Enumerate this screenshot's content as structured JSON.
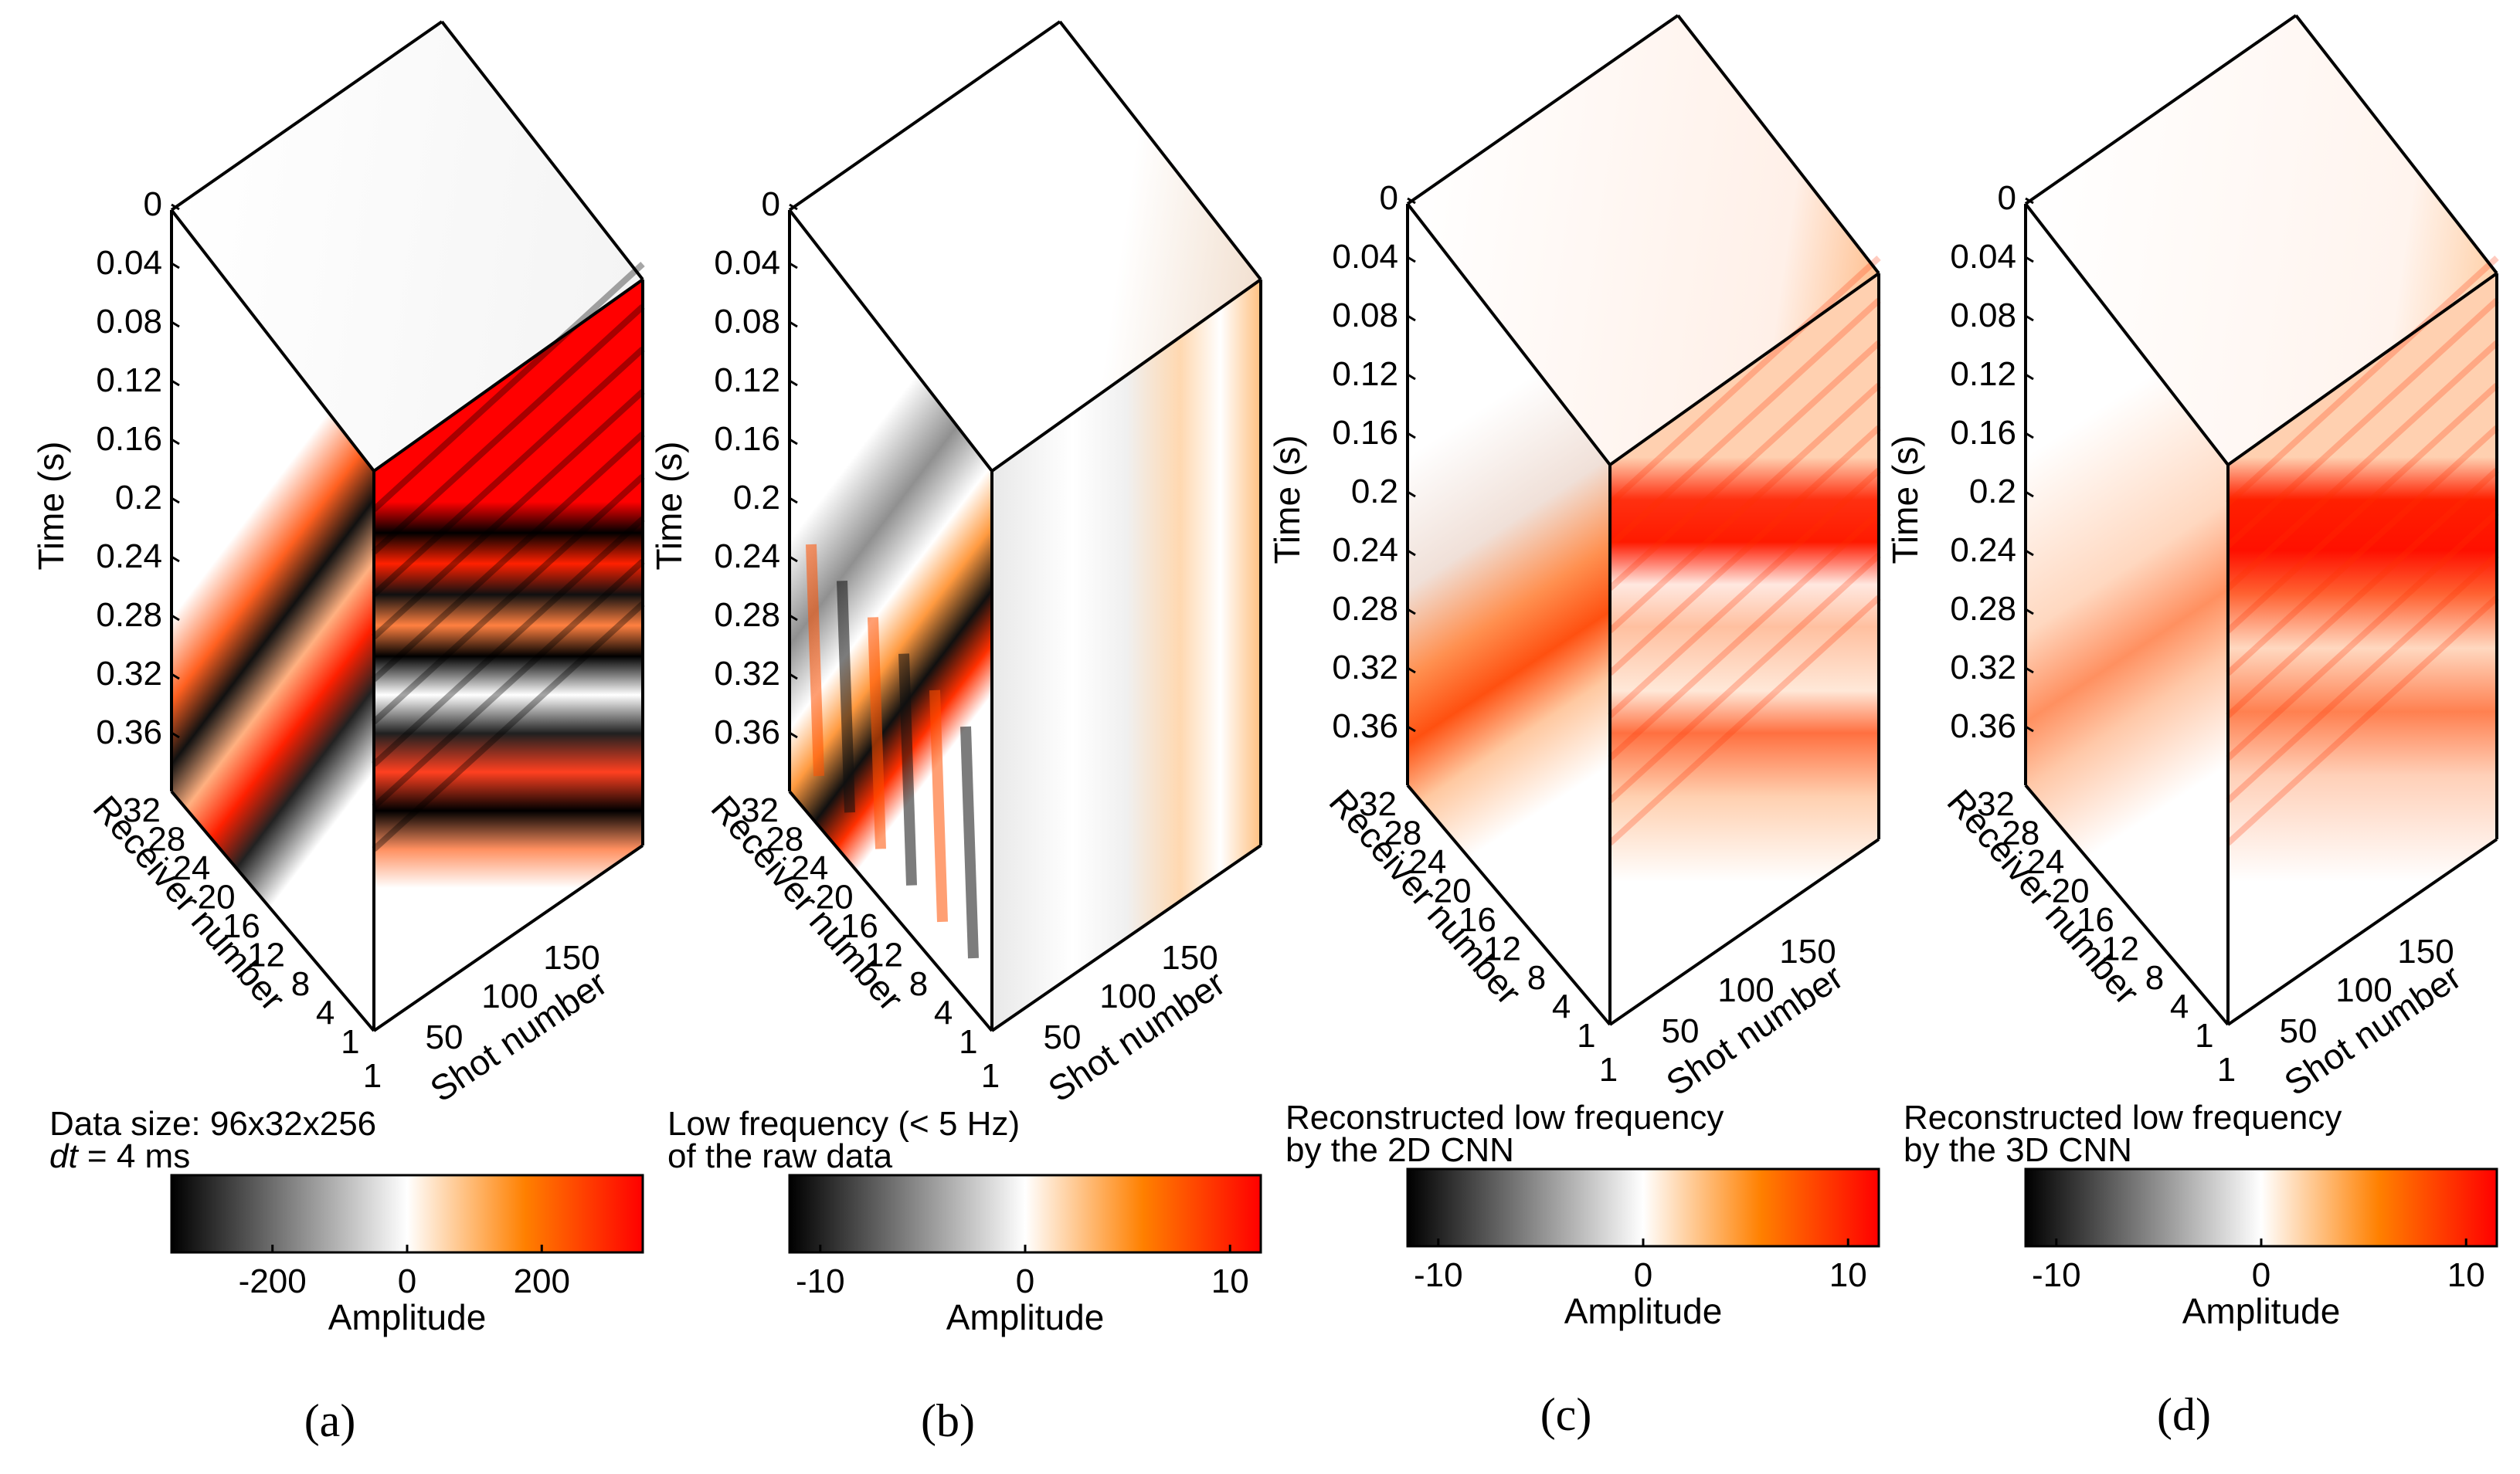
{
  "figure": {
    "colormap": [
      "#000000",
      "#ffffff",
      "#ff8000",
      "#ff0000"
    ]
  },
  "chart_data": [
    {
      "type": "heatmap",
      "panel_label": "(a)",
      "subtitle_line1": "Data size: 96x32x256",
      "subtitle_line2": "dt = 4 ms",
      "subtitle_var": "dt",
      "subtitle_rest": " = 4 ms",
      "time_axis": {
        "label": "Time (s)",
        "ticks": [
          "0",
          "0.04",
          "0.08",
          "0.12",
          "0.16",
          "0.2",
          "0.24",
          "0.28",
          "0.32",
          "0.36"
        ]
      },
      "receiver_axis": {
        "label": "Receiver number",
        "ticks": [
          "32",
          "28",
          "24",
          "20",
          "16",
          "12",
          "8",
          "4",
          "1"
        ]
      },
      "shot_axis": {
        "label": "Shot number",
        "ticks": [
          "1",
          "50",
          "100",
          "150"
        ]
      },
      "colorbar": {
        "label": "Amplitude",
        "ticks": [
          "-200",
          "0",
          "200"
        ],
        "tick_values": [
          -200,
          0,
          200
        ],
        "range": [
          -350,
          350
        ]
      },
      "style": "raw"
    },
    {
      "type": "heatmap",
      "panel_label": "(b)",
      "subtitle_line1": "Low frequency (< 5 Hz)",
      "subtitle_line2": "of the raw data",
      "time_axis": {
        "label": "Time (s)",
        "ticks": [
          "0",
          "0.04",
          "0.08",
          "0.12",
          "0.16",
          "0.2",
          "0.24",
          "0.28",
          "0.32",
          "0.36"
        ]
      },
      "receiver_axis": {
        "label": "Receiver number",
        "ticks": [
          "32",
          "28",
          "24",
          "20",
          "16",
          "12",
          "8",
          "4",
          "1"
        ]
      },
      "shot_axis": {
        "label": "Shot number",
        "ticks": [
          "1",
          "50",
          "100",
          "150"
        ]
      },
      "colorbar": {
        "label": "Amplitude",
        "ticks": [
          "-10",
          "0",
          "10"
        ],
        "tick_values": [
          -10,
          0,
          10
        ],
        "range": [
          -11.5,
          11.5
        ]
      },
      "style": "lowfreq"
    },
    {
      "type": "heatmap",
      "panel_label": "(c)",
      "subtitle_line1": "Reconstructed low frequency",
      "subtitle_line2": "by the 2D CNN",
      "time_axis": {
        "label": "Time (s)",
        "ticks": [
          "0",
          "0.04",
          "0.08",
          "0.12",
          "0.16",
          "0.2",
          "0.24",
          "0.28",
          "0.32",
          "0.36"
        ]
      },
      "receiver_axis": {
        "label": "Receiver number",
        "ticks": [
          "32",
          "28",
          "24",
          "20",
          "16",
          "12",
          "8",
          "4",
          "1"
        ]
      },
      "shot_axis": {
        "label": "Shot number",
        "ticks": [
          "1",
          "50",
          "100",
          "150"
        ]
      },
      "colorbar": {
        "label": "Amplitude",
        "ticks": [
          "-10",
          "0",
          "10"
        ],
        "tick_values": [
          -10,
          0,
          10
        ],
        "range": [
          -11.5,
          11.5
        ]
      },
      "style": "cnn2d"
    },
    {
      "type": "heatmap",
      "panel_label": "(d)",
      "subtitle_line1": "Reconstructed low frequency",
      "subtitle_line2": "by the 3D CNN",
      "time_axis": {
        "label": "Time (s)",
        "ticks": [
          "0",
          "0.04",
          "0.08",
          "0.12",
          "0.16",
          "0.2",
          "0.24",
          "0.28",
          "0.32",
          "0.36"
        ]
      },
      "receiver_axis": {
        "label": "Receiver number",
        "ticks": [
          "32",
          "28",
          "24",
          "20",
          "16",
          "12",
          "8",
          "4",
          "1"
        ]
      },
      "shot_axis": {
        "label": "Shot number",
        "ticks": [
          "1",
          "50",
          "100",
          "150"
        ]
      },
      "colorbar": {
        "label": "Amplitude",
        "ticks": [
          "-10",
          "0",
          "10"
        ],
        "tick_values": [
          -10,
          0,
          10
        ],
        "range": [
          -11.5,
          11.5
        ]
      },
      "style": "cnn3d"
    }
  ]
}
